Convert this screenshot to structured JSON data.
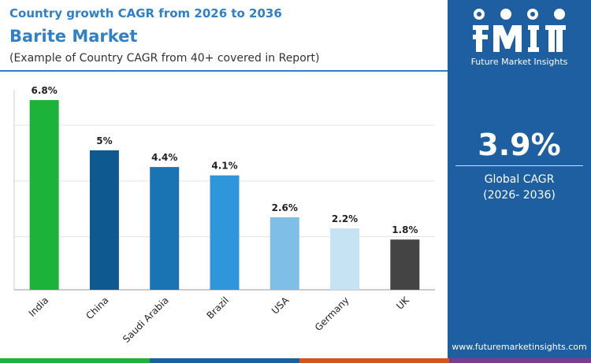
{
  "header": {
    "subtitle": "Country growth CAGR from 2026 to 2036",
    "title": "Barite Market",
    "note": "(Example of Country CAGR from 40+ covered in Report)"
  },
  "sidebar": {
    "logo_text": "Future Market Insights",
    "value": "3.9%",
    "value_label_line1": "Global CAGR",
    "value_label_line2": "(2026- 2036)",
    "website": "www.futuremarketinsights.com"
  },
  "colors": {
    "accent": "#2f80c8",
    "panel": "#1d5fa0",
    "strip": [
      "#1db33a",
      "#1d5fa0",
      "#d4541e",
      "#7f3c8c"
    ]
  },
  "chart_data": {
    "type": "bar",
    "title": "",
    "xlabel": "",
    "ylabel": "",
    "ylim": [
      0,
      7
    ],
    "grid": true,
    "categories": [
      "India",
      "China",
      "Saudi Arabia",
      "Brazil",
      "USA",
      "Germany",
      "UK"
    ],
    "values": [
      6.8,
      5,
      4.4,
      4.1,
      2.6,
      2.2,
      1.8
    ],
    "labels": [
      "6.8%",
      "5%",
      "4.4%",
      "4.1%",
      "2.6%",
      "2.2%",
      "1.8%"
    ],
    "colors": [
      "#1db33a",
      "#0e5a90",
      "#1a73b3",
      "#2f96dc",
      "#7fbfe6",
      "#c6e3f4",
      "#444444"
    ]
  }
}
